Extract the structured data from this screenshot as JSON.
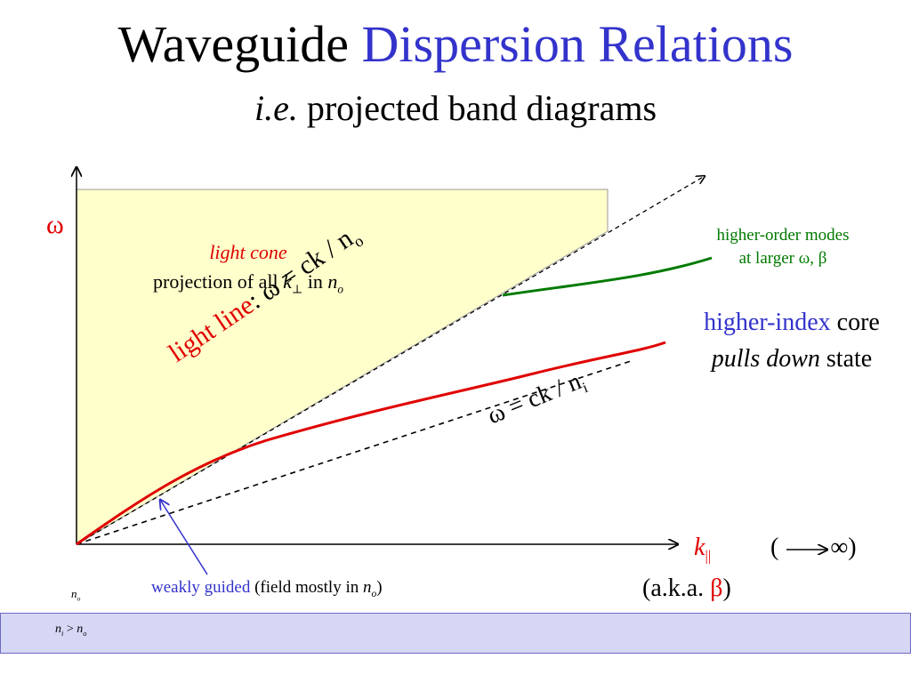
{
  "title": {
    "part1": "Waveguide ",
    "part2": "Dispersion Relations"
  },
  "subtitle": {
    "italic": "i.e.",
    "rest": " projected band diagrams"
  },
  "axis": {
    "y_label": "ω",
    "x_label": "k",
    "x_sub": "||"
  },
  "light_cone": {
    "title": "light cone",
    "line2_a": "projection of all ",
    "k_sym": "k",
    "k_sub": "⊥",
    "line2_b": " in ",
    "n_sym": "n",
    "n_sub": "o"
  },
  "light_line": {
    "word": "light line",
    "eq": ": ω = ck / n",
    "sub": "o"
  },
  "ni_line": {
    "eq": "ω = ck / n",
    "sub": "i"
  },
  "higher_order": {
    "line1": "higher-order modes",
    "line2": "at larger ω, β"
  },
  "higher_index": {
    "blue": "higher-index",
    "black1": " core",
    "italic": "pulls down",
    "black2": " state"
  },
  "limit": {
    "open": "(",
    "close": "∞)"
  },
  "aka": {
    "before": "(a.k.a. ",
    "beta": "β",
    "after": ")"
  },
  "weakly": {
    "blue": "weakly guided",
    "black": " (field mostly in ",
    "n_sym": "n",
    "n_sub": "o",
    "end": ")"
  },
  "n_o_label": {
    "n": "n",
    "sub": "o"
  },
  "footer": {
    "n1": "n",
    "sub1": "i",
    "op": " > ",
    "n2": "n",
    "sub2": "o"
  },
  "colors": {
    "cone_fill": "#ffffcc",
    "red_curve": "#e00000",
    "green_curve": "#007a00",
    "blue_text": "#3333cc"
  }
}
